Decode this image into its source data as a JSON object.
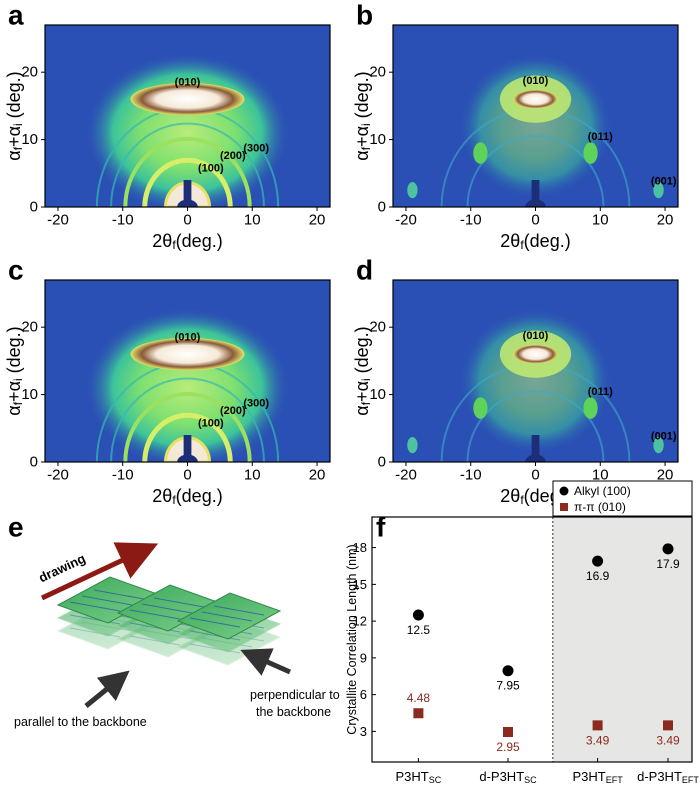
{
  "chart_data": [
    {
      "label": "a",
      "type": "heatmap",
      "xlabel": [
        "2θ",
        "f",
        "(deg.)"
      ],
      "ylabel": [
        "α",
        "f",
        "+α",
        "i",
        " (deg.)"
      ],
      "xlim": [
        -22,
        22
      ],
      "ylim": [
        0,
        27
      ],
      "xticks": [
        -20,
        -10,
        0,
        10,
        20
      ],
      "yticks": [
        0,
        10,
        20
      ],
      "annotations": [
        "(010)",
        "(100)",
        "(200)",
        "(300)"
      ]
    },
    {
      "label": "b",
      "type": "heatmap",
      "xlabel": [
        "2θ",
        "f",
        "(deg.)"
      ],
      "ylabel": [
        "α",
        "f",
        "+α",
        "i",
        " (deg.)"
      ],
      "xlim": [
        -22,
        22
      ],
      "ylim": [
        0,
        27
      ],
      "xticks": [
        -20,
        -10,
        0,
        10,
        20
      ],
      "yticks": [
        0,
        10,
        20
      ],
      "annotations": [
        "(010)",
        "(011)",
        "(001)"
      ]
    },
    {
      "label": "c",
      "type": "heatmap",
      "xlabel": [
        "2θ",
        "f",
        "(deg.)"
      ],
      "ylabel": [
        "α",
        "f",
        "+α",
        "i",
        " (deg.)"
      ],
      "xlim": [
        -22,
        22
      ],
      "ylim": [
        0,
        27
      ],
      "xticks": [
        -20,
        -10,
        0,
        10,
        20
      ],
      "yticks": [
        0,
        10,
        20
      ],
      "annotations": [
        "(010)",
        "(100)",
        "(200)",
        "(300)"
      ]
    },
    {
      "label": "d",
      "type": "heatmap",
      "xlabel": [
        "2θ",
        "f",
        "(deg.)"
      ],
      "ylabel": [
        "α",
        "f",
        "+α",
        "i",
        " (deg.)"
      ],
      "xlim": [
        -22,
        22
      ],
      "ylim": [
        0,
        27
      ],
      "xticks": [
        -20,
        -10,
        0,
        10,
        20
      ],
      "yticks": [
        0,
        10,
        20
      ],
      "annotations": [
        "(010)",
        "(011)",
        "(001)"
      ]
    },
    {
      "label": "f",
      "type": "scatter",
      "ylabel": "Crystallite Correlation Length (nm)",
      "categories": [
        [
          "P3HT",
          "SC"
        ],
        [
          "d-P3HT",
          "SC"
        ],
        [
          "P3HT",
          "EFT"
        ],
        [
          "d-P3HT",
          "EFT"
        ]
      ],
      "series": [
        {
          "name": "Alkyl (100)",
          "color": "#000000",
          "marker": "circle",
          "values": [
            12.5,
            7.95,
            16.9,
            17.9
          ]
        },
        {
          "name": "π-π (010)",
          "color": "#8b2a1e",
          "marker": "square",
          "values": [
            4.48,
            2.95,
            3.49,
            3.49
          ]
        }
      ],
      "ylim": [
        0.5,
        20.5
      ],
      "yticks": [
        3,
        6,
        9,
        12,
        15,
        18
      ]
    }
  ],
  "diagram": {
    "label": "e",
    "arrow_label": "drawing",
    "left_caption": "parallel to the backbone",
    "right_caption": [
      "perpendicular to",
      "the backbone"
    ]
  }
}
